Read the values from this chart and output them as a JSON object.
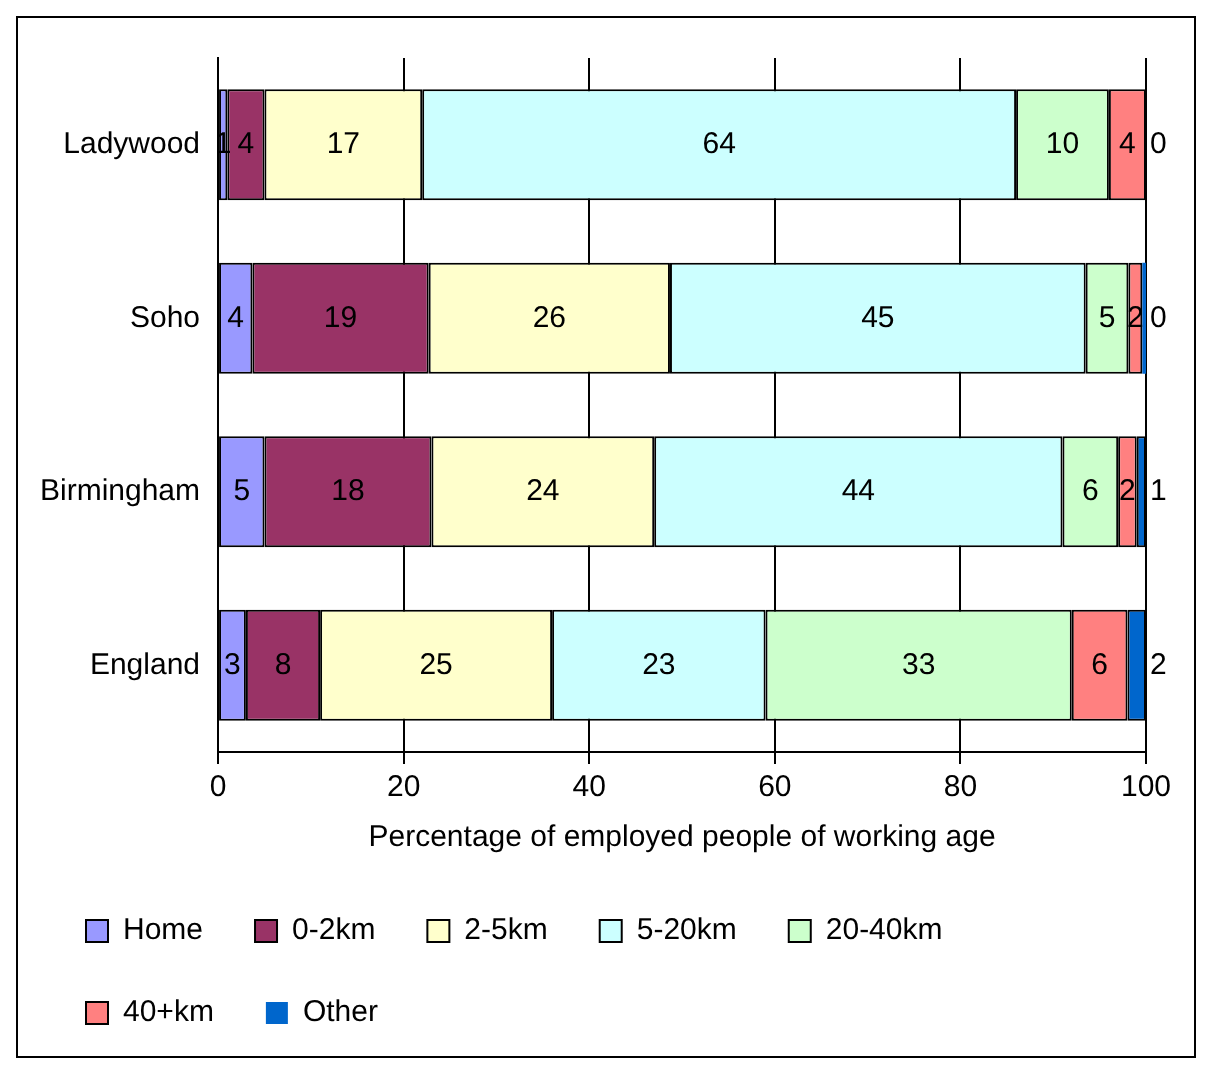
{
  "chart_data": {
    "type": "bar",
    "orientation": "horizontal",
    "stacked": true,
    "xlabel": "Percentage of employed people of working age",
    "categories": [
      "Ladywood",
      "Soho",
      "Birmingham",
      "England"
    ],
    "series": [
      {
        "name": "Home",
        "color": "#9999ff",
        "values": [
          1,
          3.7,
          5,
          3
        ],
        "value_labels": [
          "1",
          "4",
          "5",
          "3"
        ]
      },
      {
        "name": "0-2km",
        "color": "#993366",
        "values": [
          4,
          19,
          18,
          8
        ],
        "value_labels": [
          "4",
          "19",
          "18",
          "8"
        ]
      },
      {
        "name": "2-5km",
        "color": "#ffffcc",
        "values": [
          17,
          26,
          24,
          25
        ],
        "value_labels": [
          "17",
          "26",
          "24",
          "25"
        ]
      },
      {
        "name": "5-20km",
        "color": "#ccffff",
        "values": [
          64,
          44.8,
          44,
          23
        ],
        "value_labels": [
          "64",
          "45",
          "44",
          "23"
        ]
      },
      {
        "name": "20-40km",
        "color": "#ccffcc",
        "values": [
          10,
          4.6,
          6,
          33
        ],
        "value_labels": [
          "10",
          "5",
          "6",
          "33"
        ]
      },
      {
        "name": "40+km",
        "color": "#ff8080",
        "values": [
          4,
          1.5,
          2,
          6
        ],
        "value_labels": [
          "4",
          "2",
          "2",
          "6"
        ]
      },
      {
        "name": "Other",
        "color": "#0066cc",
        "values": [
          0,
          0.4,
          1,
          2
        ],
        "value_labels": [
          "0",
          "0",
          "1",
          "2"
        ]
      }
    ],
    "xlim": [
      0,
      100
    ],
    "xticks": [
      0,
      20,
      40,
      60,
      80,
      100
    ],
    "grid": "x",
    "legend": "bottom"
  }
}
